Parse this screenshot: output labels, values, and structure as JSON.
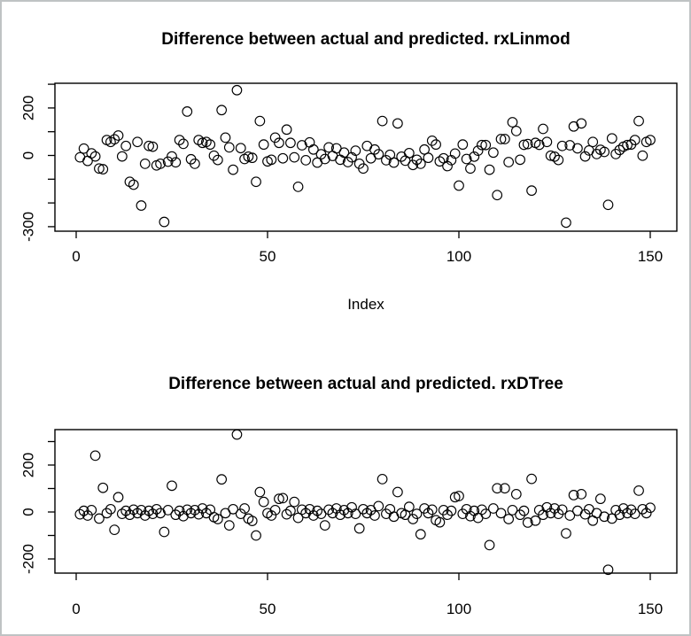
{
  "frame": {
    "background": "#ffffff",
    "border_color": "#bfc3c4",
    "ink_color": "#000000"
  },
  "chart_data": [
    {
      "type": "scatter",
      "title": "Difference between actual and predicted. rxLinmod",
      "xlabel": "Index",
      "ylabel": "",
      "marker": "open-circle",
      "legend": "none",
      "grid": false,
      "xlim": [
        -6,
        157
      ],
      "ylim": [
        -305,
        305
      ],
      "x_ticks": [
        0,
        50,
        100,
        150
      ],
      "x_tick_labels": [
        "0",
        "50",
        "100",
        "150"
      ],
      "y_ticks": [
        300,
        200,
        100,
        0,
        -100,
        -200,
        -300
      ],
      "y_tick_labels": [
        "",
        "200",
        "",
        "0",
        "",
        "",
        "-300"
      ],
      "x_start": 1,
      "values": [
        -8,
        29,
        -23,
        9,
        -4,
        -55,
        -58,
        65,
        57,
        68,
        84,
        -4,
        40,
        -111,
        -123,
        57,
        -211,
        -35,
        40,
        37,
        -42,
        -35,
        -280,
        -26,
        -4,
        -29,
        65,
        49,
        185,
        -16,
        -35,
        65,
        53,
        57,
        46,
        -1,
        -19,
        191,
        75,
        34,
        -60,
        275,
        31,
        -15,
        -5,
        -10,
        -111,
        145,
        46,
        -25,
        -18,
        75,
        53,
        -12,
        109,
        53,
        -8,
        -132,
        43,
        -20,
        55,
        25,
        -30,
        5,
        -15,
        34,
        -2,
        30,
        -18,
        12,
        -28,
        -8,
        20,
        -35,
        -55,
        40,
        -12,
        25,
        5,
        145,
        -20,
        3,
        -30,
        135,
        -5,
        -22,
        10,
        -40,
        -18,
        -35,
        25,
        -10,
        62,
        46,
        -25,
        -12,
        -45,
        -20,
        8,
        -127,
        46,
        -15,
        -55,
        -5,
        20,
        44,
        44,
        -60,
        12,
        -167,
        69,
        69,
        -28,
        140,
        103,
        -18,
        45,
        48,
        -148,
        53,
        45,
        112,
        57,
        -1,
        -5,
        -19,
        40,
        -283,
        43,
        122,
        30,
        135,
        -4,
        21,
        57,
        6,
        24,
        15,
        -208,
        72,
        6,
        23,
        37,
        44,
        46,
        65,
        145,
        -1,
        57,
        65
      ]
    },
    {
      "type": "scatter",
      "title": "Difference between actual and predicted. rxDTree",
      "xlabel": "",
      "ylabel": "",
      "marker": "open-circle",
      "legend": "none",
      "grid": false,
      "xlim": [
        -6,
        157
      ],
      "ylim": [
        -260,
        350
      ],
      "x_ticks": [
        0,
        50,
        100,
        150
      ],
      "x_tick_labels": [
        "0",
        "50",
        "100",
        "150"
      ],
      "y_ticks": [
        300,
        200,
        100,
        0,
        -100,
        -200
      ],
      "y_tick_labels": [
        "",
        "200",
        "",
        "0",
        "",
        "-200"
      ],
      "x_start": 1,
      "values": [
        -10,
        5,
        -15,
        8,
        240,
        -28,
        103,
        -5,
        12,
        -76,
        63,
        -8,
        5,
        -12,
        10,
        -5,
        8,
        -15,
        5,
        -8,
        12,
        -5,
        -85,
        8,
        112,
        -12,
        5,
        -18,
        10,
        -5,
        8,
        -10,
        15,
        -5,
        10,
        -22,
        -30,
        139,
        -5,
        -57,
        12,
        330,
        -8,
        15,
        -28,
        -38,
        -100,
        85,
        43,
        -5,
        -15,
        8,
        56,
        59,
        -10,
        5,
        43,
        -25,
        10,
        -5,
        12,
        -15,
        5,
        -8,
        -57,
        10,
        -5,
        15,
        -12,
        8,
        -5,
        20,
        -8,
        -70,
        12,
        -5,
        8,
        -15,
        25,
        140,
        -8,
        12,
        -20,
        85,
        -5,
        -12,
        22,
        -30,
        -8,
        -95,
        15,
        -5,
        10,
        -35,
        -44,
        8,
        -12,
        5,
        63,
        68,
        -8,
        12,
        -18,
        5,
        -25,
        10,
        -8,
        -141,
        15,
        101,
        -5,
        101,
        -30,
        8,
        76,
        -12,
        5,
        -45,
        141,
        -37,
        8,
        -12,
        20,
        -5,
        15,
        -8,
        10,
        -91,
        -15,
        72,
        5,
        76,
        -10,
        12,
        -37,
        -5,
        56,
        -20,
        -246,
        -28,
        8,
        -12,
        15,
        -5,
        10,
        -8,
        91,
        12,
        -5,
        18
      ]
    }
  ]
}
